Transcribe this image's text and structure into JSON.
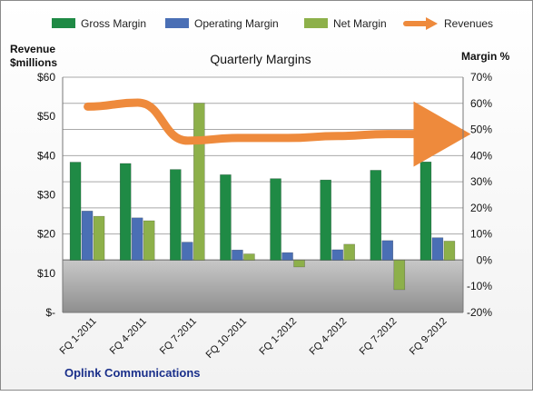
{
  "chart_data": {
    "type": "bar",
    "title": "Quarterly Margins",
    "company": "Oplink Communications",
    "left_axis_label_line1": "Revenue",
    "left_axis_label_line2": "$millions",
    "right_axis_label": "Margin %",
    "left_ticks": [
      "$60",
      "$50",
      "$40",
      "$30",
      "$20",
      "$10",
      "$-"
    ],
    "right_ticks": [
      "70%",
      "60%",
      "50%",
      "40%",
      "30%",
      "20%",
      "10%",
      "0%",
      "-10%",
      "-20%"
    ],
    "categories": [
      "FQ 1-2011",
      "FQ 4-2011",
      "FQ 7-2011",
      "FQ 10-2011",
      "FQ 1-2012",
      "FQ 4-2012",
      "FQ 7-2012",
      "FQ 9-2012"
    ],
    "ylim_revenue": [
      0,
      60
    ],
    "ylim_margin": [
      -20,
      70
    ],
    "grid": true,
    "legend_position": "top",
    "series": [
      {
        "name": "Gross Margin",
        "axis": "margin",
        "kind": "bar",
        "color": "#1f8a45",
        "values": [
          37.5,
          37,
          34.7,
          32.7,
          31.2,
          30.7,
          34.4,
          37.6
        ]
      },
      {
        "name": "Operating Margin",
        "axis": "margin",
        "kind": "bar",
        "color": "#4a6fb5",
        "values": [
          18.8,
          16.2,
          6.9,
          3.9,
          2.9,
          4.0,
          7.5,
          8.6
        ]
      },
      {
        "name": "Net Margin",
        "axis": "margin",
        "kind": "bar",
        "color": "#8db04a",
        "values": [
          16.8,
          15.1,
          60.1,
          2.4,
          -2.6,
          6.1,
          -11.3,
          7.3
        ]
      },
      {
        "name": "Revenues",
        "axis": "revenue",
        "kind": "line",
        "color": "#ee8a3c",
        "values": [
          52.5,
          53.5,
          43.8,
          44.5,
          44.5,
          45.0,
          45.5,
          45.5
        ]
      }
    ]
  }
}
